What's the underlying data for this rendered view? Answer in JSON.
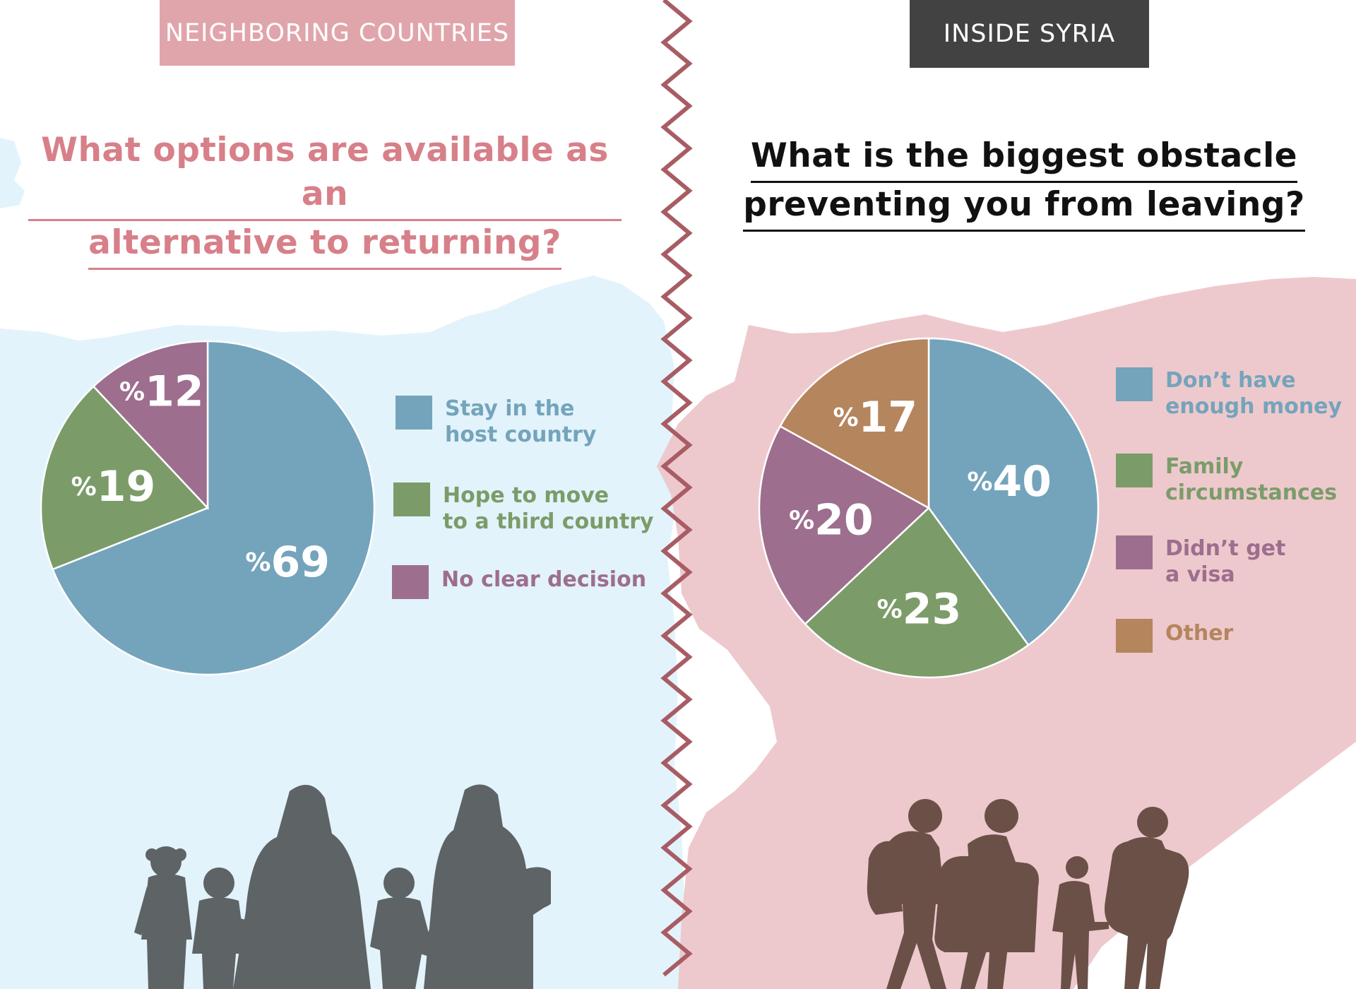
{
  "colors": {
    "left_bg": "#e2f3fb",
    "right_bg": "#edc9cd",
    "zigzag": "#a85c64",
    "blue": "#74a4bb",
    "green": "#7b9c69",
    "purple": "#9e6e8e",
    "brown": "#b5855e",
    "left_title": "#d78089",
    "left_tag_bg": "#e0a5ab",
    "right_tag_bg": "#424242",
    "left_people": "#5e6366",
    "right_people": "#6b5048"
  },
  "left": {
    "tag": "NEIGHBORING COUNTRIES",
    "question_line1": "What options are available as an",
    "question_line2": "alternative to returning?",
    "legend": [
      {
        "label": "Stay in the\nhost country",
        "color": "#74a4bb"
      },
      {
        "label": "Hope to move\nto a third country",
        "color": "#7b9c69"
      },
      {
        "label": "No clear decision",
        "color": "#9e6e8e"
      }
    ]
  },
  "right": {
    "tag": "INSIDE SYRIA",
    "question_line1": "What is the biggest obstacle",
    "question_line2": "preventing you from leaving?",
    "legend": [
      {
        "label": "Don’t have\nenough money",
        "color": "#74a4bb"
      },
      {
        "label": "Family\ncircumstances",
        "color": "#7b9c69"
      },
      {
        "label": "Didn’t get\na visa",
        "color": "#9e6e8e"
      },
      {
        "label": "Other",
        "color": "#b5855e"
      }
    ]
  },
  "chart_data": [
    {
      "type": "pie",
      "title": "What options are available as an alternative to returning?",
      "categories": [
        "Stay in the host country",
        "Hope to move to a third country",
        "No clear decision"
      ],
      "values": [
        69,
        19,
        12
      ],
      "labels": [
        "69",
        "19",
        "12"
      ],
      "percent_prefix": "%",
      "colors": [
        "#74a4bb",
        "#7b9c69",
        "#9e6e8e"
      ]
    },
    {
      "type": "pie",
      "title": "What is the biggest obstacle preventing you from leaving?",
      "categories": [
        "Don’t have enough money",
        "Family circumstances",
        "Didn’t get a visa",
        "Other"
      ],
      "values": [
        40,
        23,
        20,
        17
      ],
      "labels": [
        "40",
        "23",
        "20",
        "17"
      ],
      "percent_prefix": "%",
      "colors": [
        "#74a4bb",
        "#7b9c69",
        "#9e6e8e",
        "#b5855e"
      ]
    }
  ]
}
